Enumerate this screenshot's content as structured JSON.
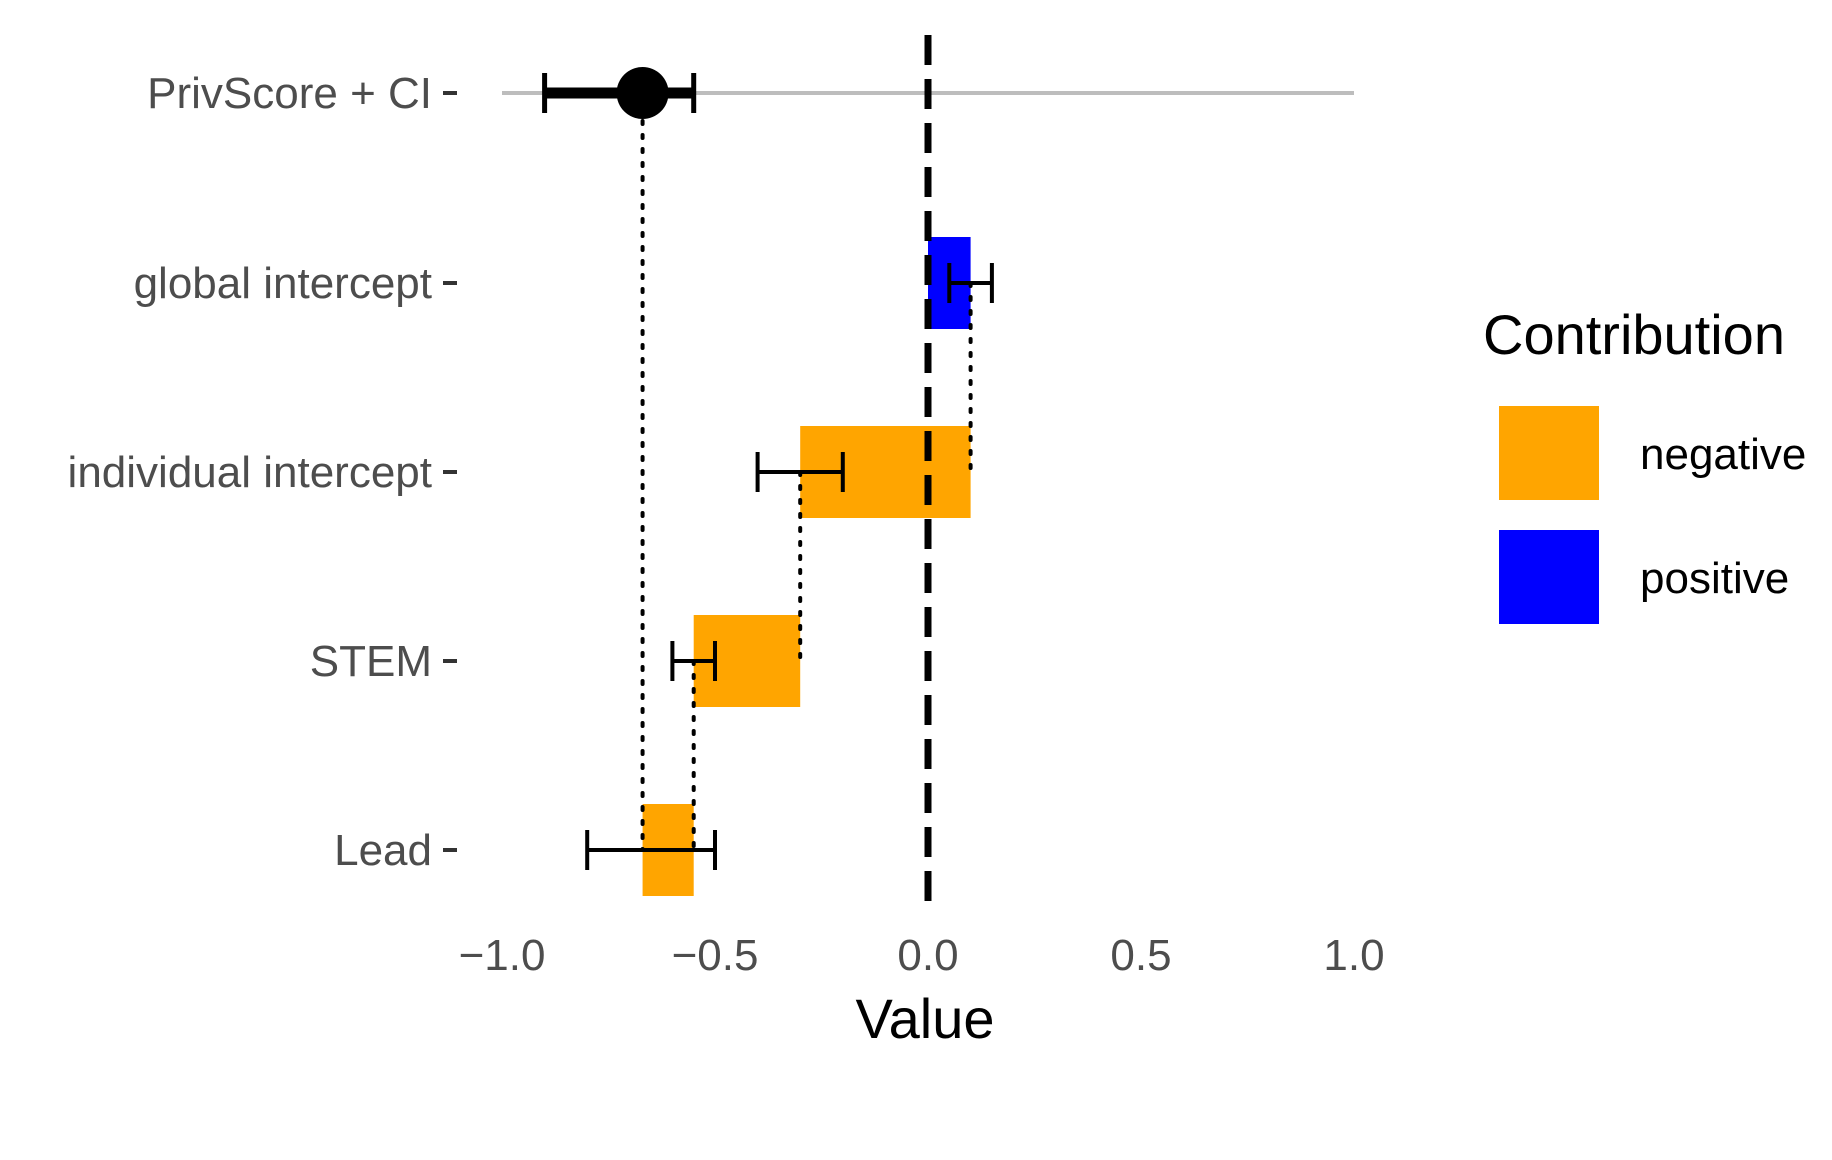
{
  "chart_data": {
    "type": "bar",
    "xlabel": "Value",
    "ylabel": "",
    "xlim": [
      -1.0,
      1.0
    ],
    "x_ticks": [
      "−1.0",
      "−0.5",
      "0.0",
      "0.5",
      "1.0"
    ],
    "x_tick_values": [
      -1.0,
      -0.5,
      0.0,
      0.5,
      1.0
    ],
    "categories": [
      "PrivScore + CI",
      "global intercept",
      "individual intercept",
      "STEM",
      "Lead"
    ],
    "bars": [
      {
        "category": "global intercept",
        "start": 0.0,
        "end": 0.1,
        "contribution": "positive",
        "ci": [
          0.05,
          0.15
        ]
      },
      {
        "category": "individual intercept",
        "start": 0.1,
        "end": -0.3,
        "contribution": "negative",
        "ci": [
          -0.4,
          -0.2
        ]
      },
      {
        "category": "STEM",
        "start": -0.3,
        "end": -0.55,
        "contribution": "negative",
        "ci": [
          -0.6,
          -0.5
        ]
      },
      {
        "category": "Lead",
        "start": -0.55,
        "end": -0.67,
        "contribution": "negative",
        "ci": [
          -0.8,
          -0.5
        ]
      }
    ],
    "privscore": {
      "category": "PrivScore + CI",
      "value": -0.67,
      "ci_inner": [
        -0.9,
        -0.55
      ],
      "range": [
        -1.0,
        1.0
      ]
    },
    "reference_line": 0.0,
    "legend": {
      "title": "Contribution",
      "placement": "right",
      "items": [
        {
          "label": "negative",
          "color": "#FFA500"
        },
        {
          "label": "positive",
          "color": "#0000FF"
        }
      ]
    },
    "grid": false
  }
}
